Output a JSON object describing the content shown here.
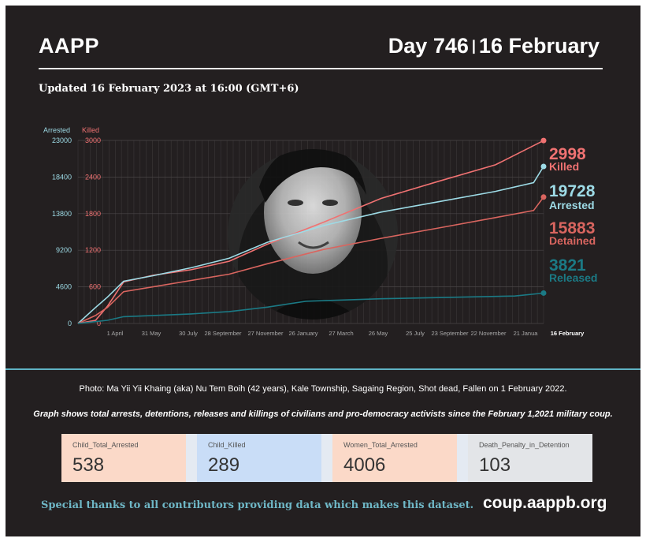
{
  "header": {
    "org": "AAPP",
    "day_label": "Day 746",
    "separator": "|",
    "date_label": "16 February",
    "updated": "Updated 16 February 2023 at 16:00 (GMT+6)"
  },
  "colors": {
    "background": "#231f20",
    "arrested": "#9ddbe6",
    "killed": "#f07272",
    "detained": "#d9655f",
    "released": "#1b7a85",
    "accent_rule": "#5fb3c4"
  },
  "chart_data": {
    "type": "line",
    "left_axis": {
      "label": "Arrested",
      "ticks": [
        0,
        4600,
        9200,
        13800,
        18400,
        23000
      ],
      "range": [
        0,
        23000
      ]
    },
    "right_axis": {
      "label": "Killed",
      "ticks": [
        0,
        600,
        1200,
        1800,
        2400,
        3000
      ],
      "range": [
        0,
        3000
      ]
    },
    "x_ticks": [
      "1 April",
      "31 May",
      "30 July",
      "28 September",
      "27 November",
      "26 January",
      "27 March",
      "26 May",
      "25 July",
      "23 September",
      "22 November",
      "21 Janua",
      "16 February"
    ],
    "x_range": [
      "2021-02-01",
      "2023-02-16"
    ],
    "grid": true,
    "series": [
      {
        "name": "Killed",
        "axis": "right",
        "final": "2998",
        "label": "Killed",
        "points": [
          [
            "2021-02-01",
            0
          ],
          [
            "2021-03-01",
            50
          ],
          [
            "2021-03-20",
            280
          ],
          [
            "2021-04-15",
            680
          ],
          [
            "2021-06-01",
            790
          ],
          [
            "2021-08-01",
            880
          ],
          [
            "2021-10-01",
            1020
          ],
          [
            "2021-12-01",
            1300
          ],
          [
            "2022-03-01",
            1660
          ],
          [
            "2022-06-01",
            2050
          ],
          [
            "2022-09-01",
            2330
          ],
          [
            "2022-12-01",
            2600
          ],
          [
            "2023-02-16",
            2998
          ]
        ]
      },
      {
        "name": "Arrested",
        "axis": "left",
        "final": "19728",
        "label": "Arrested",
        "points": [
          [
            "2021-02-01",
            0
          ],
          [
            "2021-03-01",
            2000
          ],
          [
            "2021-03-20",
            3300
          ],
          [
            "2021-04-15",
            5300
          ],
          [
            "2021-06-01",
            6000
          ],
          [
            "2021-08-01",
            7000
          ],
          [
            "2021-10-01",
            8200
          ],
          [
            "2021-12-01",
            10200
          ],
          [
            "2022-03-01",
            12300
          ],
          [
            "2022-06-01",
            14000
          ],
          [
            "2022-09-01",
            15300
          ],
          [
            "2022-12-01",
            16600
          ],
          [
            "2023-01-31",
            17700
          ],
          [
            "2023-02-16",
            19728
          ]
        ]
      },
      {
        "name": "Detained",
        "axis": "left",
        "final": "15883",
        "label": "Detained",
        "points": [
          [
            "2021-02-01",
            0
          ],
          [
            "2021-03-01",
            1000
          ],
          [
            "2021-03-20",
            2000
          ],
          [
            "2021-04-15",
            4000
          ],
          [
            "2021-06-01",
            4600
          ],
          [
            "2021-08-01",
            5400
          ],
          [
            "2021-10-01",
            6200
          ],
          [
            "2021-12-01",
            7500
          ],
          [
            "2022-03-01",
            9300
          ],
          [
            "2022-06-01",
            10700
          ],
          [
            "2022-09-01",
            12000
          ],
          [
            "2022-12-01",
            13300
          ],
          [
            "2023-01-31",
            14200
          ],
          [
            "2023-02-16",
            15883
          ]
        ]
      },
      {
        "name": "Released",
        "axis": "left",
        "final": "3821",
        "label": "Released",
        "points": [
          [
            "2021-02-01",
            0
          ],
          [
            "2021-03-20",
            400
          ],
          [
            "2021-04-15",
            850
          ],
          [
            "2021-06-01",
            1000
          ],
          [
            "2021-08-01",
            1200
          ],
          [
            "2021-10-01",
            1500
          ],
          [
            "2021-12-01",
            2050
          ],
          [
            "2022-02-01",
            2800
          ],
          [
            "2022-06-01",
            3100
          ],
          [
            "2022-10-01",
            3300
          ],
          [
            "2023-01-01",
            3450
          ],
          [
            "2023-02-16",
            3821
          ]
        ]
      }
    ]
  },
  "photo": {
    "icon": "portrait-photo"
  },
  "caption": "Photo: Ma Yii Yii Khaing (aka) Nu Tem Boih (42 years),  Kale Township, Sagaing Region, Shot dead, Fallen on 1 February 2022.",
  "note": "Graph shows total arrests, detentions, releases and killings of civilians and pro-democracy activists since the February 1,2021 military coup.",
  "cards": [
    {
      "label": "Child_Total_Arrested",
      "value": "538",
      "color": "#fbd9c8"
    },
    {
      "label": "Child_Killed",
      "value": "289",
      "color": "#c9ddf7"
    },
    {
      "label": "Women_Total_Arrested",
      "value": "4006",
      "color": "#fbd9c8"
    },
    {
      "label": "Death_Penalty_in_Detention",
      "value": "103",
      "color": "#e3e5e8"
    }
  ],
  "footer": {
    "thanks": "Special thanks to all contributors providing data which makes this dataset.",
    "url": "coup.aappb.org"
  }
}
